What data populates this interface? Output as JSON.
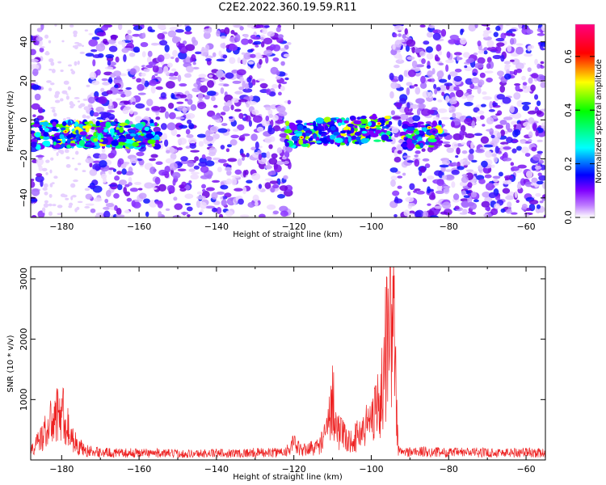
{
  "title": "C2E2.2022.360.19.59.R11",
  "chart_data": [
    {
      "type": "heatmap",
      "xlabel": "Height of straight line (km)",
      "ylabel": "Frequency (Hz)",
      "xlim": [
        -188,
        -55
      ],
      "ylim": [
        -50,
        49
      ],
      "x_ticks": [
        -180,
        -160,
        -140,
        -120,
        -100,
        -80,
        -60
      ],
      "y_ticks": [
        -40,
        -20,
        0,
        20,
        40
      ],
      "colorbar": {
        "label": "Normalized spectral amplitude",
        "range": [
          0.0,
          0.72
        ],
        "ticks": [
          "0.0",
          "0.2",
          "0.4",
          "0.6"
        ],
        "colors": [
          "#ffffff",
          "#8000ff",
          "#0000ff",
          "#00ffff",
          "#00ff00",
          "#ffff00",
          "#ff0000",
          "#ff0080"
        ]
      },
      "signal_band": {
        "frequency_start": -12,
        "frequency_end": 1
      },
      "noise_regions": [
        [
          -188,
          -185
        ],
        [
          -173,
          -121
        ],
        [
          -95,
          -55
        ]
      ],
      "signal_regions": [
        [
          -188,
          -155
        ],
        [
          -122,
          -95
        ],
        [
          -92,
          -82
        ]
      ]
    },
    {
      "type": "line",
      "xlabel": "Height of straight line (km)",
      "ylabel": "SNR (10 * v/v)",
      "xlim": [
        -188,
        -55
      ],
      "ylim": [
        0,
        3200
      ],
      "x_ticks": [
        -180,
        -160,
        -140,
        -120,
        -100,
        -80,
        -60
      ],
      "y_ticks": [
        1000,
        2000,
        3000
      ],
      "color": "#ee2222",
      "series": [
        {
          "x": [
            -188,
            -186,
            -184,
            -182,
            -180,
            -178,
            -176,
            -174,
            -172,
            -170,
            -165,
            -160,
            -155,
            -150,
            -145,
            -140,
            -135,
            -130,
            -125,
            -122,
            -120,
            -118,
            -116,
            -114,
            -112,
            -111,
            -110,
            -109,
            -108,
            -106,
            -104,
            -102,
            -100,
            -99,
            -98,
            -97,
            -96,
            -95,
            -94,
            -93.5,
            -93,
            -92,
            -90,
            -85,
            -80,
            -75,
            -70,
            -65,
            -60,
            -55
          ],
          "values": [
            200,
            400,
            650,
            900,
            1100,
            600,
            320,
            220,
            180,
            170,
            150,
            160,
            150,
            140,
            140,
            150,
            150,
            160,
            160,
            200,
            350,
            200,
            260,
            280,
            500,
            800,
            1500,
            700,
            600,
            400,
            500,
            700,
            900,
            1300,
            1100,
            1700,
            2700,
            3200,
            2800,
            1200,
            200,
            170,
            180,
            180,
            160,
            170,
            160,
            160,
            170,
            150
          ]
        }
      ]
    }
  ]
}
